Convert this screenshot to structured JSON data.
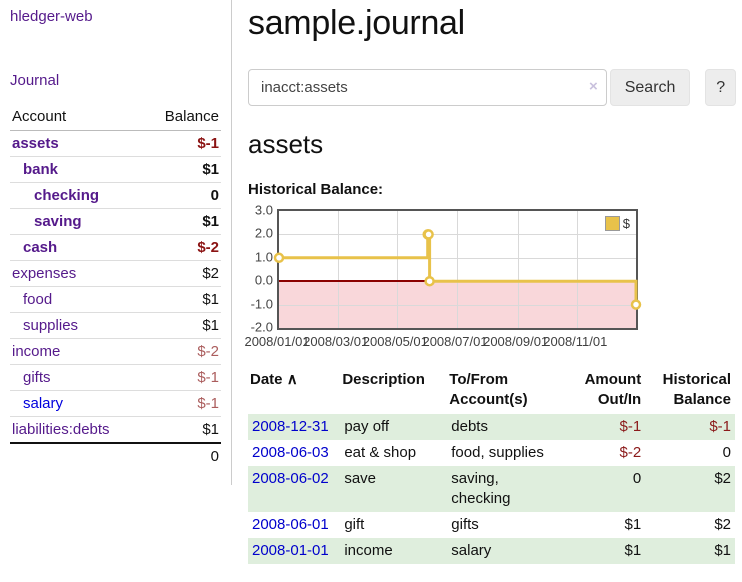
{
  "sidebar": {
    "brand": "hledger-web",
    "journal_link": "Journal",
    "accounts": {
      "headers": {
        "account": "Account",
        "balance": "Balance"
      },
      "rows": [
        {
          "name": "assets",
          "balance": "$-1",
          "depth": 0,
          "bold": true,
          "neg": true,
          "link": "purple"
        },
        {
          "name": "bank",
          "balance": "$1",
          "depth": 1,
          "bold": true,
          "neg": false,
          "link": "purple"
        },
        {
          "name": "checking",
          "balance": "0",
          "depth": 2,
          "bold": true,
          "neg": false,
          "link": "purple"
        },
        {
          "name": "saving",
          "balance": "$1",
          "depth": 2,
          "bold": true,
          "neg": false,
          "link": "purple"
        },
        {
          "name": "cash",
          "balance": "$-2",
          "depth": 1,
          "bold": true,
          "neg": true,
          "link": "purple"
        },
        {
          "name": "expenses",
          "balance": "$2",
          "depth": 0,
          "bold": false,
          "neg": false,
          "link": "purple"
        },
        {
          "name": "food",
          "balance": "$1",
          "depth": 1,
          "bold": false,
          "neg": false,
          "link": "purple"
        },
        {
          "name": "supplies",
          "balance": "$1",
          "depth": 1,
          "bold": false,
          "neg": false,
          "link": "purple"
        },
        {
          "name": "income",
          "balance": "$-2",
          "depth": 0,
          "bold": false,
          "neg": true,
          "link": "purple"
        },
        {
          "name": "gifts",
          "balance": "$-1",
          "depth": 1,
          "bold": false,
          "neg": true,
          "link": "purple"
        },
        {
          "name": "salary",
          "balance": "$-1",
          "depth": 1,
          "bold": false,
          "neg": true,
          "link": "blue"
        },
        {
          "name": "liabilities:debts",
          "balance": "$1",
          "depth": 0,
          "bold": false,
          "neg": false,
          "link": "purple"
        }
      ],
      "total": "0"
    }
  },
  "main": {
    "title": "sample.journal",
    "search": {
      "value": "inacct:assets",
      "clear_icon": "×",
      "button_label": "Search",
      "help_label": "?"
    },
    "account_heading": "assets",
    "chart_heading": "Historical Balance:",
    "register": {
      "headers": {
        "date": "Date",
        "sort_icon": "∧",
        "description": "Description",
        "accounts": "To/From Account(s)",
        "amount": "Amount Out/In",
        "balance": "Historical Balance"
      },
      "rows": [
        {
          "date": "2008-12-31",
          "description": "pay off",
          "accounts": "debts",
          "amount": "$-1",
          "amount_neg": true,
          "balance": "$-1",
          "balance_neg": true,
          "striped": true
        },
        {
          "date": "2008-06-03",
          "description": "eat & shop",
          "accounts": "food, supplies",
          "amount": "$-2",
          "amount_neg": true,
          "balance": "0",
          "balance_neg": false,
          "striped": false
        },
        {
          "date": "2008-06-02",
          "description": "save",
          "accounts": "saving, checking",
          "amount": "0",
          "amount_neg": false,
          "balance": "$2",
          "balance_neg": false,
          "striped": true
        },
        {
          "date": "2008-06-01",
          "description": "gift",
          "accounts": "gifts",
          "amount": "$1",
          "amount_neg": false,
          "balance": "$2",
          "balance_neg": false,
          "striped": false
        },
        {
          "date": "2008-01-01",
          "description": "income",
          "accounts": "salary",
          "amount": "$1",
          "amount_neg": false,
          "balance": "$1",
          "balance_neg": false,
          "striped": true
        }
      ]
    }
  },
  "chart_data": {
    "type": "line",
    "title": "Historical Balance",
    "step": true,
    "series": [
      {
        "name": "$",
        "color": "#e8c24a",
        "points": [
          {
            "date": "2008-01-01",
            "value": 1
          },
          {
            "date": "2008-06-01",
            "value": 2
          },
          {
            "date": "2008-06-02",
            "value": 2
          },
          {
            "date": "2008-06-03",
            "value": 0
          },
          {
            "date": "2008-12-31",
            "value": -1
          }
        ]
      }
    ],
    "x_range": [
      "2008-01-01",
      "2008-12-31"
    ],
    "ylim": [
      -2,
      3
    ],
    "y_ticks": [
      {
        "value": 3,
        "label": "3.0"
      },
      {
        "value": 2,
        "label": "2.0"
      },
      {
        "value": 1,
        "label": "1.0"
      },
      {
        "value": 0,
        "label": "0.0"
      },
      {
        "value": -1,
        "label": "-1.0"
      },
      {
        "value": -2,
        "label": "-2.0"
      }
    ],
    "x_ticks": [
      {
        "date": "2008-01-01",
        "label": "2008/01/01"
      },
      {
        "date": "2008-03-01",
        "label": "2008/03/01"
      },
      {
        "date": "2008-05-01",
        "label": "2008/05/01"
      },
      {
        "date": "2008-07-01",
        "label": "2008/07/01"
      },
      {
        "date": "2008-09-01",
        "label": "2008/09/01"
      },
      {
        "date": "2008-11-01",
        "label": "2008/11/01"
      }
    ],
    "legend": {
      "label": "$",
      "position": "top-right"
    },
    "grid": true,
    "negative_region_color": "#f9d7da",
    "zero_line_color": "#8b0000",
    "line_color": "#e8c24a",
    "marker_fill": "#ffffff"
  }
}
